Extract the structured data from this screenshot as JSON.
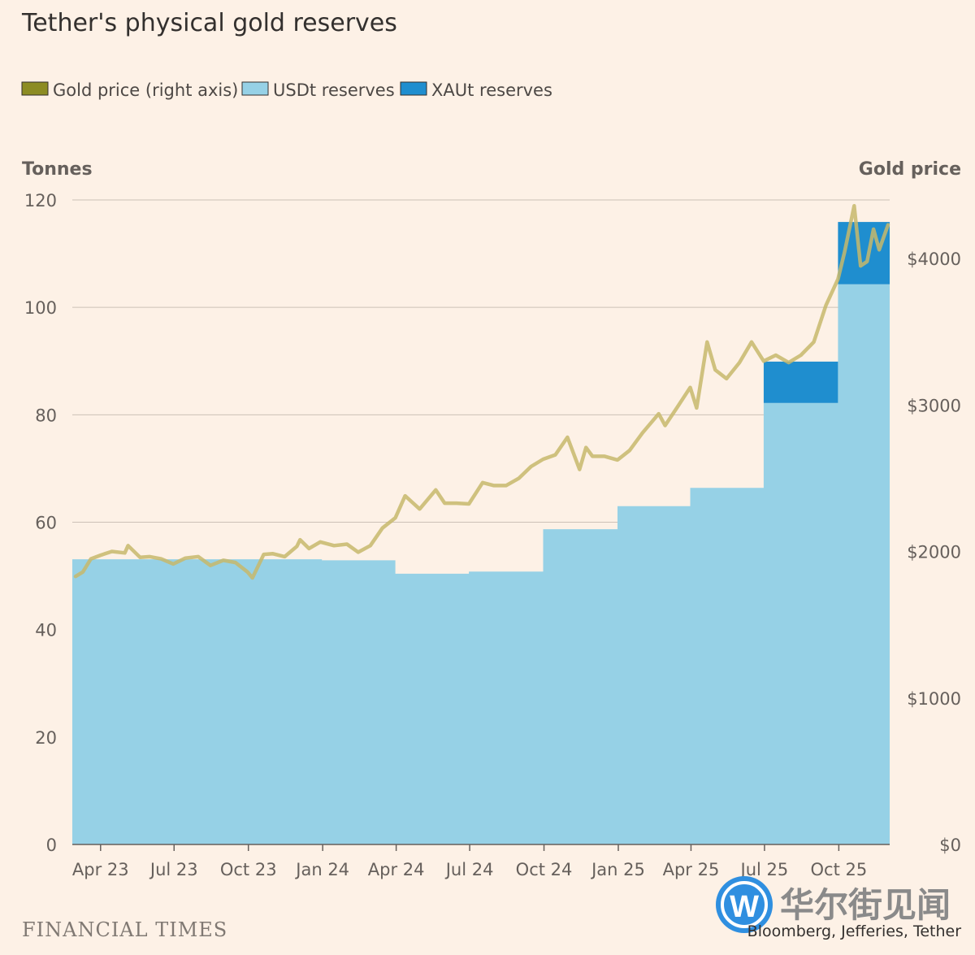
{
  "page": {
    "title": "Tether's physical gold reserves",
    "footer_brand": "FINANCIAL TIMES",
    "source": "Bloomberg, Jefferies, Tether",
    "watermark": {
      "logo_letter": "W",
      "text": "华尔街见闻"
    }
  },
  "chart_data": {
    "type": "area",
    "title": "Tether's physical gold reserves",
    "legend": [
      {
        "name": "Gold price (right axis)",
        "color": "#8c8c23",
        "style": "line"
      },
      {
        "name": "USDt reserves",
        "color": "#96d1e6",
        "style": "area"
      },
      {
        "name": "XAUt reserves",
        "color": "#1f8ecf",
        "style": "area"
      }
    ],
    "legend_position": "top-left",
    "grid": true,
    "x_axis": {
      "type": "date",
      "range": [
        "2023-02-25",
        "2025-12-03"
      ],
      "ticks": [
        {
          "date": "2023-04-01",
          "label": "Apr 23"
        },
        {
          "date": "2023-07-01",
          "label": "Jul 23"
        },
        {
          "date": "2023-10-01",
          "label": "Oct 23"
        },
        {
          "date": "2024-01-01",
          "label": "Jan 24"
        },
        {
          "date": "2024-04-01",
          "label": "Apr 24"
        },
        {
          "date": "2024-07-01",
          "label": "Jul 24"
        },
        {
          "date": "2024-10-01",
          "label": "Oct 24"
        },
        {
          "date": "2025-01-01",
          "label": "Jan 25"
        },
        {
          "date": "2025-04-01",
          "label": "Apr 25"
        },
        {
          "date": "2025-07-01",
          "label": "Jul 25"
        },
        {
          "date": "2025-10-01",
          "label": "Oct 25"
        }
      ]
    },
    "y_left": {
      "title": "Tonnes",
      "range": [
        0,
        120
      ],
      "ticks": [
        0,
        20,
        40,
        60,
        80,
        100,
        120
      ]
    },
    "y_right": {
      "title": "Gold price",
      "range": [
        0,
        4400
      ],
      "ticks": [
        {
          "value": 0,
          "label": "$0"
        },
        {
          "value": 1000,
          "label": "$1000"
        },
        {
          "value": 2000,
          "label": "$2000"
        },
        {
          "value": 3000,
          "label": "$3000"
        },
        {
          "value": 4000,
          "label": "$4000"
        }
      ]
    },
    "usdt_reserves_tonnes": [
      {
        "start": "2023-02-25",
        "end": "2023-12-31",
        "value": 53.1
      },
      {
        "start": "2023-12-31",
        "end": "2024-03-31",
        "value": 52.9
      },
      {
        "start": "2024-03-31",
        "end": "2024-06-30",
        "value": 50.4
      },
      {
        "start": "2024-06-30",
        "end": "2024-09-30",
        "value": 50.8
      },
      {
        "start": "2024-09-30",
        "end": "2024-12-31",
        "value": 58.7
      },
      {
        "start": "2024-12-31",
        "end": "2025-03-31",
        "value": 63.0
      },
      {
        "start": "2025-03-31",
        "end": "2025-06-30",
        "value": 66.4
      },
      {
        "start": "2025-06-30",
        "end": "2025-09-30",
        "value": 82.2
      },
      {
        "start": "2025-09-30",
        "end": "2025-12-03",
        "value": 104.3
      }
    ],
    "xaut_reserves_tonnes": [
      {
        "start": "2025-06-30",
        "end": "2025-09-30",
        "value": 7.7
      },
      {
        "start": "2025-09-30",
        "end": "2025-12-03",
        "value": 11.6
      }
    ],
    "gold_price_usd": [
      [
        "2023-03-01",
        1830
      ],
      [
        "2023-03-10",
        1860
      ],
      [
        "2023-03-20",
        1950
      ],
      [
        "2023-04-01",
        1975
      ],
      [
        "2023-04-15",
        2000
      ],
      [
        "2023-05-01",
        1990
      ],
      [
        "2023-05-05",
        2040
      ],
      [
        "2023-05-20",
        1960
      ],
      [
        "2023-06-01",
        1965
      ],
      [
        "2023-06-15",
        1950
      ],
      [
        "2023-06-30",
        1915
      ],
      [
        "2023-07-15",
        1955
      ],
      [
        "2023-07-31",
        1965
      ],
      [
        "2023-08-15",
        1905
      ],
      [
        "2023-08-31",
        1940
      ],
      [
        "2023-09-15",
        1925
      ],
      [
        "2023-09-30",
        1860
      ],
      [
        "2023-10-06",
        1820
      ],
      [
        "2023-10-20",
        1980
      ],
      [
        "2023-10-31",
        1985
      ],
      [
        "2023-11-15",
        1965
      ],
      [
        "2023-11-30",
        2035
      ],
      [
        "2023-12-04",
        2080
      ],
      [
        "2023-12-15",
        2020
      ],
      [
        "2023-12-29",
        2065
      ],
      [
        "2024-01-15",
        2040
      ],
      [
        "2024-01-31",
        2050
      ],
      [
        "2024-02-14",
        1995
      ],
      [
        "2024-02-29",
        2040
      ],
      [
        "2024-03-15",
        2160
      ],
      [
        "2024-03-31",
        2230
      ],
      [
        "2024-04-12",
        2380
      ],
      [
        "2024-04-30",
        2290
      ],
      [
        "2024-05-20",
        2420
      ],
      [
        "2024-05-31",
        2330
      ],
      [
        "2024-06-15",
        2330
      ],
      [
        "2024-06-30",
        2325
      ],
      [
        "2024-07-17",
        2470
      ],
      [
        "2024-07-31",
        2450
      ],
      [
        "2024-08-15",
        2450
      ],
      [
        "2024-08-31",
        2500
      ],
      [
        "2024-09-15",
        2580
      ],
      [
        "2024-09-30",
        2630
      ],
      [
        "2024-10-15",
        2660
      ],
      [
        "2024-10-30",
        2780
      ],
      [
        "2024-11-14",
        2560
      ],
      [
        "2024-11-22",
        2710
      ],
      [
        "2024-11-30",
        2650
      ],
      [
        "2024-12-15",
        2650
      ],
      [
        "2024-12-31",
        2625
      ],
      [
        "2025-01-15",
        2690
      ],
      [
        "2025-01-31",
        2810
      ],
      [
        "2025-02-20",
        2940
      ],
      [
        "2025-02-28",
        2860
      ],
      [
        "2025-03-15",
        2985
      ],
      [
        "2025-03-31",
        3120
      ],
      [
        "2025-04-08",
        2980
      ],
      [
        "2025-04-21",
        3430
      ],
      [
        "2025-05-01",
        3240
      ],
      [
        "2025-05-15",
        3180
      ],
      [
        "2025-05-31",
        3290
      ],
      [
        "2025-06-15",
        3430
      ],
      [
        "2025-06-30",
        3300
      ],
      [
        "2025-07-15",
        3340
      ],
      [
        "2025-07-31",
        3290
      ],
      [
        "2025-08-15",
        3340
      ],
      [
        "2025-08-31",
        3430
      ],
      [
        "2025-09-15",
        3680
      ],
      [
        "2025-09-30",
        3860
      ],
      [
        "2025-10-08",
        4040
      ],
      [
        "2025-10-20",
        4360
      ],
      [
        "2025-10-28",
        3950
      ],
      [
        "2025-11-05",
        3980
      ],
      [
        "2025-11-13",
        4200
      ],
      [
        "2025-11-20",
        4060
      ],
      [
        "2025-12-01",
        4230
      ]
    ]
  }
}
